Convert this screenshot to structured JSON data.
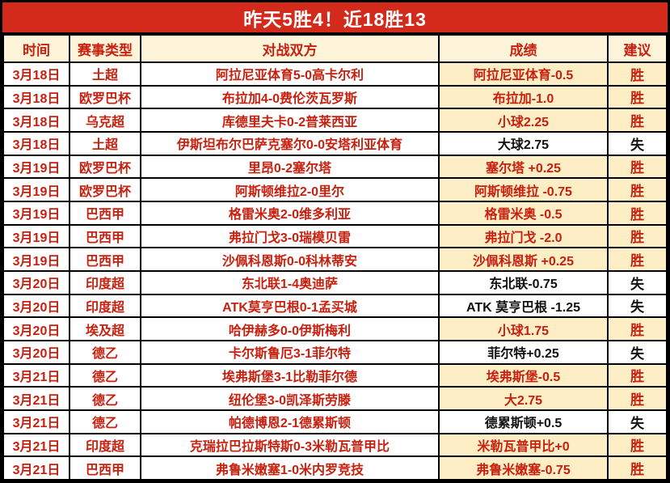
{
  "banner": {
    "title": "昨天5胜4！近18胜13"
  },
  "colors": {
    "banner-bg": "#d42a1c",
    "banner-text": "#ffffff",
    "header-bg": "#fdf4da",
    "highlight-bg": "#fdeec6",
    "red": "#c8200f",
    "black": "#111111",
    "border": "#000000"
  },
  "table": {
    "columns": [
      {
        "key": "date",
        "label": "时间"
      },
      {
        "key": "league",
        "label": "赛事类型"
      },
      {
        "key": "match",
        "label": "对战双方"
      },
      {
        "key": "result",
        "label": "成绩"
      },
      {
        "key": "advice",
        "label": "建议"
      }
    ],
    "rows": [
      {
        "date": "3月18日",
        "league": "土超",
        "match": "阿拉尼亚体育5-0高卡尔利",
        "result": "阿拉尼亚体育-0.5",
        "advice": "胜",
        "win": true
      },
      {
        "date": "3月18日",
        "league": "欧罗巴杯",
        "match": "布拉加4-0费伦茨瓦罗斯",
        "result": "布拉加-1.0",
        "advice": "胜",
        "win": true
      },
      {
        "date": "3月18日",
        "league": "乌克超",
        "match": "库德里夫卡0-2普莱西亚",
        "result": "小球2.25",
        "advice": "胜",
        "win": true
      },
      {
        "date": "3月18日",
        "league": "土超",
        "match": "伊斯坦布尔巴萨克塞尔0-0安塔利亚体育",
        "result": "大球2.75",
        "advice": "失",
        "win": false
      },
      {
        "date": "3月19日",
        "league": "欧罗巴杯",
        "match": "里昂0-2塞尔塔",
        "result": "塞尔塔 +0.25",
        "advice": "胜",
        "win": true
      },
      {
        "date": "3月19日",
        "league": "欧罗巴杯",
        "match": "阿斯顿维拉2-0里尔",
        "result": "阿斯顿维拉 -0.75",
        "advice": "胜",
        "win": true
      },
      {
        "date": "3月19日",
        "league": "巴西甲",
        "match": "格雷米奥2-0维多利亚",
        "result": "格雷米奥 -0.5",
        "advice": "胜",
        "win": true
      },
      {
        "date": "3月19日",
        "league": "巴西甲",
        "match": "弗拉门戈3-0瑞模贝雷",
        "result": "弗拉门戈 -2.0",
        "advice": "胜",
        "win": true
      },
      {
        "date": "3月19日",
        "league": "巴西甲",
        "match": "沙佩科恩斯0-0科林蒂安",
        "result": "沙佩科恩斯 +0.25",
        "advice": "胜",
        "win": true
      },
      {
        "date": "3月20日",
        "league": "印度超",
        "match": "东北联1-4奥迪萨",
        "result": "东北联-0.75",
        "advice": "失",
        "win": false
      },
      {
        "date": "3月20日",
        "league": "印度超",
        "match": "ATK莫亨巴根0-1孟买城",
        "result": "ATK 莫亨巴根 -1.25",
        "advice": "失",
        "win": false
      },
      {
        "date": "3月20日",
        "league": "埃及超",
        "match": "哈伊赫多0-0伊斯梅利",
        "result": "小球1.75",
        "advice": "胜",
        "win": true
      },
      {
        "date": "3月20日",
        "league": "德乙",
        "match": "卡尔斯鲁厄3-1菲尔特",
        "result": "菲尔特+0.25",
        "advice": "失",
        "win": false
      },
      {
        "date": "3月21日",
        "league": "德乙",
        "match": "埃弗斯堡3-1比勒菲尔德",
        "result": "埃弗斯堡-0.5",
        "advice": "胜",
        "win": true
      },
      {
        "date": "3月21日",
        "league": "德乙",
        "match": "纽伦堡3-0凯泽斯劳滕",
        "result": "大2.75",
        "advice": "胜",
        "win": true
      },
      {
        "date": "3月21日",
        "league": "德乙",
        "match": "帕德博恩2-1德累斯顿",
        "result": "德累斯顿+0.5",
        "advice": "失",
        "win": false
      },
      {
        "date": "3月21日",
        "league": "印度超",
        "match": "克瑞拉巴拉斯特斯0-3米勒瓦普甲比",
        "result": "米勒瓦普甲比+0",
        "advice": "胜",
        "win": true
      },
      {
        "date": "3月21日",
        "league": "巴西甲",
        "match": "弗鲁米嫩塞1-0米内罗竞技",
        "result": "弗鲁米嫩塞-0.75",
        "advice": "胜",
        "win": true
      }
    ]
  }
}
